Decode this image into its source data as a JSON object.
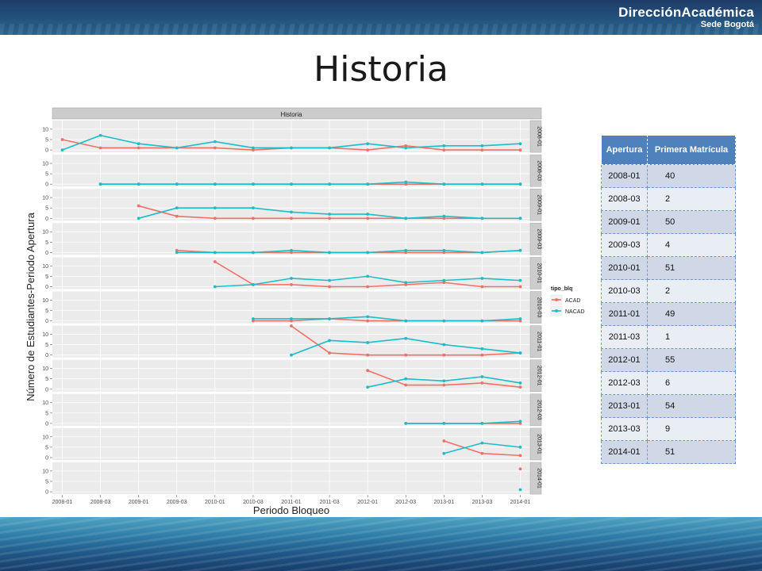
{
  "header": {
    "brand_main": "DirecciónAcadémica",
    "brand_sub": "Sede Bogotá"
  },
  "slide": {
    "title": "Historia"
  },
  "table": {
    "headers": [
      "Apertura",
      "Primera Matrícula"
    ],
    "rows": [
      [
        "2008-01",
        "40"
      ],
      [
        "2008-03",
        "2"
      ],
      [
        "2009-01",
        "50"
      ],
      [
        "2009-03",
        "4"
      ],
      [
        "2010-01",
        "51"
      ],
      [
        "2010-03",
        "2"
      ],
      [
        "2011-01",
        "49"
      ],
      [
        "2011-03",
        "1"
      ],
      [
        "2012-01",
        "55"
      ],
      [
        "2012-03",
        "6"
      ],
      [
        "2013-01",
        "54"
      ],
      [
        "2013-03",
        "9"
      ],
      [
        "2014-01",
        "51"
      ]
    ]
  },
  "chart_data": {
    "type": "line",
    "title": "Historia",
    "xlabel": "Periodo Bloqueo",
    "ylabel": "Número de Estudiantes-Periodo Apertura",
    "x": [
      "2008-01",
      "2008-03",
      "2009-01",
      "2009-03",
      "2010-01",
      "2010-03",
      "2011-01",
      "2011-03",
      "2012-01",
      "2012-03",
      "2013-01",
      "2013-03",
      "2014-01"
    ],
    "ylim": [
      0,
      13
    ],
    "yticks": [
      0,
      5,
      10
    ],
    "legend": {
      "title": "tipo_blq",
      "position": "right"
    },
    "colors": {
      "ACAD": "#f26f64",
      "NACAD": "#19bec7"
    },
    "facets": [
      {
        "label": "2008-01",
        "series": [
          {
            "name": "ACAD",
            "values": [
              5,
              1,
              1,
              1,
              1,
              0,
              1,
              1,
              0,
              2,
              0,
              0,
              0
            ]
          },
          {
            "name": "NACAD",
            "values": [
              0,
              7,
              3,
              1,
              4,
              1,
              1,
              1,
              3,
              1,
              2,
              2,
              3
            ]
          }
        ]
      },
      {
        "label": "2008-03",
        "series": [
          {
            "name": "ACAD",
            "values": [
              null,
              0,
              0,
              0,
              0,
              0,
              0,
              0,
              0,
              0,
              0,
              0,
              0
            ]
          },
          {
            "name": "NACAD",
            "values": [
              null,
              0,
              0,
              0,
              0,
              0,
              0,
              0,
              0,
              1,
              0,
              0,
              0
            ]
          }
        ]
      },
      {
        "label": "2009-01",
        "series": [
          {
            "name": "ACAD",
            "values": [
              null,
              null,
              6,
              1,
              0,
              0,
              0,
              0,
              0,
              0,
              0,
              0,
              0
            ]
          },
          {
            "name": "NACAD",
            "values": [
              null,
              null,
              0,
              5,
              5,
              5,
              3,
              2,
              2,
              0,
              1,
              0,
              0
            ]
          }
        ]
      },
      {
        "label": "2009-03",
        "series": [
          {
            "name": "ACAD",
            "values": [
              null,
              null,
              null,
              1,
              0,
              0,
              0,
              0,
              0,
              0,
              0,
              0,
              1
            ]
          },
          {
            "name": "NACAD",
            "values": [
              null,
              null,
              null,
              0,
              0,
              0,
              1,
              0,
              0,
              1,
              1,
              0,
              1
            ]
          }
        ]
      },
      {
        "label": "2010-01",
        "series": [
          {
            "name": "ACAD",
            "values": [
              null,
              null,
              null,
              null,
              12,
              1,
              1,
              0,
              0,
              1,
              2,
              0,
              0
            ]
          },
          {
            "name": "NACAD",
            "values": [
              null,
              null,
              null,
              null,
              0,
              1,
              4,
              3,
              5,
              2,
              3,
              4,
              3
            ]
          }
        ]
      },
      {
        "label": "2010-03",
        "series": [
          {
            "name": "ACAD",
            "values": [
              null,
              null,
              null,
              null,
              null,
              0,
              0,
              1,
              0,
              0,
              0,
              0,
              0
            ]
          },
          {
            "name": "NACAD",
            "values": [
              null,
              null,
              null,
              null,
              null,
              1,
              1,
              1,
              2,
              0,
              0,
              0,
              1
            ]
          }
        ]
      },
      {
        "label": "2011-01",
        "series": [
          {
            "name": "ACAD",
            "values": [
              null,
              null,
              null,
              null,
              null,
              null,
              14,
              1,
              0,
              0,
              0,
              0,
              1
            ]
          },
          {
            "name": "NACAD",
            "values": [
              null,
              null,
              null,
              null,
              null,
              null,
              0,
              7,
              6,
              8,
              5,
              3,
              1
            ]
          }
        ]
      },
      {
        "label": "2012-01",
        "series": [
          {
            "name": "ACAD",
            "values": [
              null,
              null,
              null,
              null,
              null,
              null,
              null,
              null,
              9,
              2,
              2,
              3,
              1
            ]
          },
          {
            "name": "NACAD",
            "values": [
              null,
              null,
              null,
              null,
              null,
              null,
              null,
              null,
              1,
              5,
              4,
              6,
              3
            ]
          }
        ]
      },
      {
        "label": "2012-03",
        "series": [
          {
            "name": "ACAD",
            "values": [
              null,
              null,
              null,
              null,
              null,
              null,
              null,
              null,
              null,
              0,
              0,
              0,
              0
            ]
          },
          {
            "name": "NACAD",
            "values": [
              null,
              null,
              null,
              null,
              null,
              null,
              null,
              null,
              null,
              0,
              0,
              0,
              1
            ]
          }
        ]
      },
      {
        "label": "2013-01",
        "series": [
          {
            "name": "ACAD",
            "values": [
              null,
              null,
              null,
              null,
              null,
              null,
              null,
              null,
              null,
              null,
              8,
              2,
              1
            ]
          },
          {
            "name": "NACAD",
            "values": [
              null,
              null,
              null,
              null,
              null,
              null,
              null,
              null,
              null,
              null,
              2,
              7,
              5
            ]
          }
        ]
      },
      {
        "label": "2014-01",
        "series": [
          {
            "name": "ACAD",
            "values": [
              null,
              null,
              null,
              null,
              null,
              null,
              null,
              null,
              null,
              null,
              null,
              null,
              11
            ]
          },
          {
            "name": "NACAD",
            "values": [
              null,
              null,
              null,
              null,
              null,
              null,
              null,
              null,
              null,
              null,
              null,
              null,
              1
            ]
          }
        ]
      }
    ]
  }
}
